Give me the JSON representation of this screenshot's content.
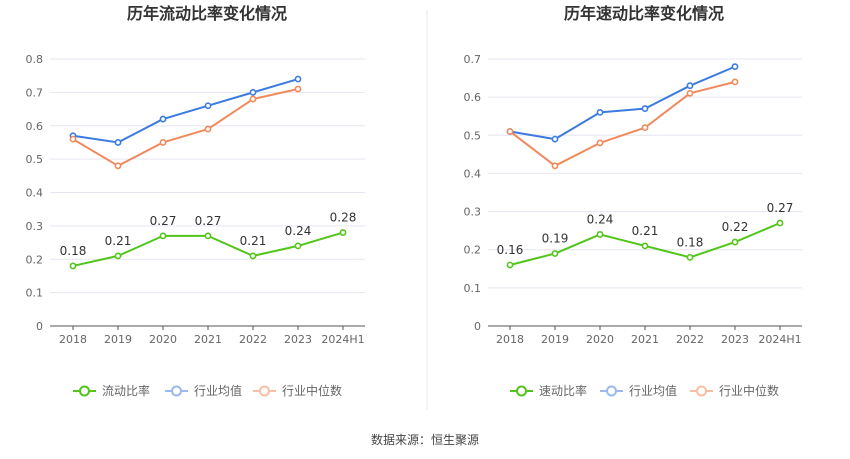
{
  "source": "数据来源：恒生聚源",
  "colors": {
    "primary": "#52c41a",
    "average": "#3b7be0",
    "median": "#f08a5d",
    "legend_average": "#9bb9ef",
    "legend_median": "#f7bfa3",
    "grid": "#e6e6f0",
    "axis": "#555555",
    "divider": "#e8e8e8"
  },
  "chart_data": [
    {
      "type": "line",
      "title": "历年流动比率变化情况",
      "categories": [
        "2018",
        "2019",
        "2020",
        "2021",
        "2022",
        "2023",
        "2024H1"
      ],
      "ylim": [
        0,
        0.8
      ],
      "yticks": [
        0,
        0.1,
        0.2,
        0.3,
        0.4,
        0.5,
        0.6,
        0.7,
        0.8
      ],
      "ytick_labels": [
        "0",
        "0.1",
        "0.2",
        "0.3",
        "0.4",
        "0.5",
        "0.6",
        "0.7",
        "0.8"
      ],
      "grid": true,
      "legend_position": "bottom",
      "series": [
        {
          "name": "流动比率",
          "values": [
            0.18,
            0.21,
            0.27,
            0.27,
            0.21,
            0.24,
            0.28
          ],
          "labels": [
            "0.18",
            "0.21",
            "0.27",
            "0.27",
            "0.21",
            "0.24",
            "0.28"
          ]
        },
        {
          "name": "行业均值",
          "values": [
            0.57,
            0.55,
            0.62,
            0.66,
            0.7,
            0.74,
            null
          ]
        },
        {
          "name": "行业中位数",
          "values": [
            0.56,
            0.48,
            0.55,
            0.59,
            0.68,
            0.71,
            null
          ]
        }
      ]
    },
    {
      "type": "line",
      "title": "历年速动比率变化情况",
      "categories": [
        "2018",
        "2019",
        "2020",
        "2021",
        "2022",
        "2023",
        "2024H1"
      ],
      "ylim": [
        0,
        0.7
      ],
      "yticks": [
        0,
        0.1,
        0.2,
        0.3,
        0.4,
        0.5,
        0.6,
        0.7
      ],
      "ytick_labels": [
        "0",
        "0.1",
        "0.2",
        "0.3",
        "0.4",
        "0.5",
        "0.6",
        "0.7"
      ],
      "grid": true,
      "legend_position": "bottom",
      "series": [
        {
          "name": "速动比率",
          "values": [
            0.16,
            0.19,
            0.24,
            0.21,
            0.18,
            0.22,
            0.27
          ],
          "labels": [
            "0.16",
            "0.19",
            "0.24",
            "0.21",
            "0.18",
            "0.22",
            "0.27"
          ]
        },
        {
          "name": "行业均值",
          "values": [
            0.51,
            0.49,
            0.56,
            0.57,
            0.63,
            0.68,
            null
          ]
        },
        {
          "name": "行业中位数",
          "values": [
            0.51,
            0.42,
            0.48,
            0.52,
            0.61,
            0.64,
            null
          ]
        }
      ]
    }
  ]
}
